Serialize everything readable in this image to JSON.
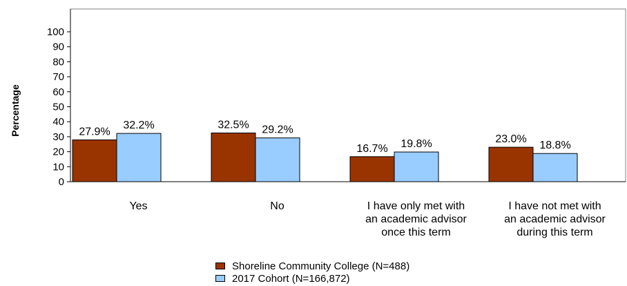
{
  "chart_data": {
    "type": "bar",
    "title": "",
    "ylabel": "Percentage",
    "xlabel": "",
    "ylim": [
      0,
      100
    ],
    "yticks": [
      0,
      10,
      20,
      30,
      40,
      50,
      60,
      70,
      80,
      90,
      100
    ],
    "categories": [
      [
        "Yes"
      ],
      [
        "No"
      ],
      [
        "I have only met with",
        "an academic advisor",
        "once this term"
      ],
      [
        "I have not met with",
        "an academic advisor",
        "during this term"
      ]
    ],
    "series": [
      {
        "name": "Shoreline Community College (N=488)",
        "color": "#993300",
        "values": [
          27.9,
          32.5,
          16.7,
          23.0
        ],
        "labels": [
          "27.9%",
          "32.5%",
          "16.7%",
          "23.0%"
        ]
      },
      {
        "name": "2017 Cohort (N=166,872)",
        "color": "#99ccff",
        "values": [
          32.2,
          29.2,
          19.8,
          18.8
        ],
        "labels": [
          "32.2%",
          "29.2%",
          "19.8%",
          "18.8%"
        ]
      }
    ],
    "grid": false,
    "legend_position": "bottom"
  }
}
